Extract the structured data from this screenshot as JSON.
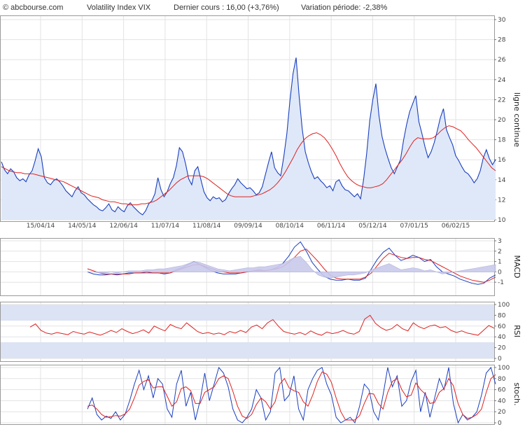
{
  "header": {
    "site": "© abcbourse.com",
    "instrument": "Volatility Index VIX",
    "last_price": "Dernier cours : 16,00 (+3,76%)",
    "period_change": "Variation période: -2,38%"
  },
  "colors": {
    "price_line": "#1a3fbf",
    "price_fill": "#dfe8f8",
    "moving_average": "#e02020",
    "histogram": "#c9c9ec",
    "rsi_band": "#dbe3f4",
    "grid": "#e3e3e3",
    "text": "#333333"
  },
  "chart_data": [
    {
      "type": "line",
      "panel": "price",
      "label": "ligne continue",
      "ylim": [
        10,
        30
      ],
      "yticks": [
        "10",
        "12",
        "14",
        "16",
        "18",
        "20",
        "22",
        "24",
        "26",
        "28",
        "30"
      ],
      "xticks": [
        "15/04/14",
        "14/05/14",
        "12/06/14",
        "11/07/14",
        "11/08/14",
        "09/09/14",
        "08/10/14",
        "06/11/14",
        "05/12/14",
        "07/01/15",
        "06/02/15"
      ],
      "grid": true,
      "fill_under": true,
      "series": [
        {
          "role": "price",
          "values": [
            15.8,
            15.0,
            14.6,
            15.1,
            14.8,
            14.2,
            13.9,
            14.1,
            13.8,
            14.5,
            14.9,
            15.9,
            17.1,
            16.3,
            14.2,
            13.7,
            13.5,
            13.9,
            14.1,
            13.8,
            13.4,
            12.9,
            12.6,
            12.3,
            12.9,
            13.3,
            12.7,
            12.5,
            12.1,
            11.8,
            11.5,
            11.3,
            11.0,
            10.9,
            11.2,
            11.6,
            11.0,
            10.8,
            11.3,
            11.0,
            10.8,
            11.4,
            11.7,
            11.3,
            11.0,
            10.7,
            10.5,
            10.9,
            11.6,
            11.9,
            12.6,
            14.2,
            13.0,
            12.3,
            12.8,
            13.6,
            14.2,
            15.4,
            17.2,
            16.8,
            15.6,
            14.1,
            13.5,
            14.9,
            15.3,
            14.0,
            12.8,
            12.2,
            11.9,
            12.3,
            12.1,
            12.2,
            11.8,
            12.0,
            12.6,
            13.1,
            13.5,
            14.1,
            13.7,
            13.4,
            13.1,
            13.2,
            12.9,
            12.5,
            12.7,
            13.3,
            14.5,
            15.7,
            16.8,
            15.2,
            14.7,
            14.4,
            16.3,
            18.6,
            21.9,
            24.6,
            26.2,
            22.3,
            19.1,
            16.8,
            15.7,
            14.8,
            14.1,
            14.3,
            13.9,
            13.6,
            13.2,
            13.4,
            12.9,
            13.8,
            14.0,
            13.4,
            13.0,
            12.9,
            12.6,
            12.3,
            12.6,
            12.1,
            14.0,
            16.6,
            19.9,
            22.0,
            23.6,
            20.4,
            18.3,
            17.1,
            16.1,
            15.2,
            14.6,
            15.3,
            16.0,
            17.9,
            19.5,
            20.8,
            21.6,
            22.4,
            19.8,
            18.6,
            17.3,
            16.2,
            16.8,
            17.7,
            18.9,
            20.2,
            21.1,
            19.0,
            18.2,
            17.5,
            16.4,
            15.9,
            15.3,
            14.8,
            14.6,
            14.2,
            13.7,
            14.1,
            14.9,
            16.2,
            17.0,
            16.1,
            15.5,
            16.0
          ]
        },
        {
          "role": "moving-average",
          "values": [
            15.3,
            15.1,
            14.9,
            14.8,
            14.7,
            14.7,
            14.6,
            14.6,
            14.6,
            14.5,
            14.4,
            14.3,
            14.2,
            14.1,
            14.0,
            13.9,
            13.8,
            13.6,
            13.4,
            13.2,
            13.0,
            12.8,
            12.6,
            12.4,
            12.3,
            12.2,
            12.0,
            11.9,
            11.8,
            11.8,
            11.7,
            11.6,
            11.6,
            11.5,
            11.5,
            11.5,
            11.6,
            11.6,
            11.7,
            11.8,
            12.0,
            12.3,
            12.6,
            12.9,
            13.3,
            13.7,
            14.0,
            14.2,
            14.4,
            14.4,
            14.4,
            14.4,
            14.3,
            14.1,
            13.8,
            13.5,
            13.2,
            12.9,
            12.6,
            12.4,
            12.3,
            12.3,
            12.3,
            12.3,
            12.3,
            12.4,
            12.5,
            12.6,
            12.8,
            13.0,
            13.3,
            13.7,
            14.2,
            14.8,
            15.5,
            16.2,
            17.0,
            17.6,
            18.1,
            18.4,
            18.6,
            18.7,
            18.5,
            18.2,
            17.7,
            17.1,
            16.4,
            15.6,
            14.9,
            14.3,
            13.9,
            13.6,
            13.4,
            13.3,
            13.2,
            13.2,
            13.3,
            13.4,
            13.6,
            14.0,
            14.5,
            15.0,
            15.5,
            16.0,
            16.6,
            17.3,
            17.9,
            18.2,
            18.1,
            18.1,
            18.1,
            18.2,
            18.5,
            18.9,
            19.2,
            19.4,
            19.3,
            19.1,
            18.9,
            18.5,
            18.0,
            17.6,
            17.2,
            16.7,
            16.2,
            15.7,
            15.2,
            14.9
          ]
        }
      ]
    },
    {
      "type": "line",
      "panel": "macd",
      "label": "MACD",
      "ylim": [
        -2,
        3
      ],
      "yticks": [
        "-1",
        "0",
        "1",
        "2",
        "3"
      ],
      "grid": true,
      "series": [
        {
          "role": "macd",
          "values": [
            0.0,
            -0.2,
            -0.3,
            -0.3,
            -0.2,
            -0.3,
            -0.2,
            -0.1,
            -0.1,
            -0.1,
            0.0,
            -0.1,
            -0.1,
            -0.2,
            -0.1,
            0.2,
            0.4,
            0.7,
            1.0,
            0.7,
            0.4,
            0.1,
            -0.1,
            -0.2,
            -0.2,
            -0.2,
            -0.1,
            0.0,
            0.1,
            0.2,
            0.1,
            0.2,
            0.4,
            0.8,
            1.5,
            2.4,
            2.9,
            2.0,
            0.9,
            0.2,
            -0.4,
            -0.7,
            -0.8,
            -0.8,
            -0.7,
            -0.8,
            -0.8,
            -0.6,
            0.3,
            1.2,
            1.9,
            2.3,
            1.6,
            1.1,
            1.3,
            1.6,
            1.4,
            1.0,
            1.2,
            0.5,
            0.0,
            -0.2,
            -0.4,
            -0.7,
            -0.9,
            -1.1,
            -1.2,
            -1.1,
            -0.6,
            -0.3
          ]
        },
        {
          "role": "signal",
          "values": [
            0.3,
            0.1,
            -0.1,
            -0.2,
            -0.2,
            -0.2,
            -0.2,
            -0.2,
            -0.1,
            -0.1,
            -0.1,
            -0.1,
            -0.1,
            -0.1,
            -0.1,
            0.1,
            0.3,
            0.5,
            0.7,
            0.7,
            0.5,
            0.3,
            0.1,
            0.0,
            -0.1,
            -0.1,
            -0.1,
            0.0,
            0.1,
            0.1,
            0.1,
            0.2,
            0.3,
            0.5,
            0.9,
            1.4,
            2.0,
            2.2,
            1.6,
            1.0,
            0.3,
            -0.3,
            -0.6,
            -0.7,
            -0.7,
            -0.7,
            -0.7,
            -0.5,
            -0.1,
            0.6,
            1.3,
            1.8,
            1.6,
            1.4,
            1.3,
            1.4,
            1.4,
            1.2,
            1.1,
            0.8,
            0.5,
            0.2,
            -0.1,
            -0.4,
            -0.6,
            -0.8,
            -0.9,
            -1.0,
            -0.8,
            -0.5
          ]
        },
        {
          "role": "histogram",
          "values": [
            0.0,
            0.0,
            -0.1,
            -0.1,
            0.0,
            -0.1,
            0.0,
            0.1,
            0.1,
            0.1,
            0.2,
            0.2,
            0.3,
            0.3,
            0.4,
            0.5,
            0.6,
            0.8,
            1.0,
            0.9,
            0.7,
            0.5,
            0.3,
            0.2,
            0.1,
            0.2,
            0.3,
            0.4,
            0.4,
            0.5,
            0.5,
            0.6,
            0.7,
            0.8,
            1.1,
            1.4,
            1.5,
            0.9,
            0.2,
            -0.3,
            -0.5,
            -0.6,
            -0.5,
            -0.4,
            -0.3,
            -0.3,
            -0.2,
            -0.1,
            0.2,
            0.4,
            0.6,
            0.8,
            0.5,
            0.2,
            0.3,
            0.4,
            0.3,
            0.1,
            0.2,
            0.0,
            -0.2,
            -0.1,
            0.0,
            0.1,
            0.2,
            0.3,
            0.4,
            0.5,
            0.6,
            0.7
          ]
        }
      ]
    },
    {
      "type": "line",
      "panel": "rsi",
      "label": "RSI",
      "ylim": [
        0,
        100
      ],
      "yticks": [
        "0",
        "20",
        "40",
        "60",
        "80",
        "100"
      ],
      "bands": [
        [
          0,
          30
        ],
        [
          70,
          100
        ]
      ],
      "grid": true,
      "series": [
        {
          "role": "rsi",
          "values": [
            58,
            64,
            52,
            47,
            45,
            48,
            46,
            44,
            50,
            47,
            45,
            49,
            46,
            43,
            47,
            52,
            48,
            55,
            50,
            46,
            49,
            53,
            47,
            60,
            55,
            51,
            63,
            58,
            55,
            66,
            58,
            50,
            46,
            48,
            45,
            47,
            44,
            50,
            47,
            52,
            48,
            58,
            62,
            55,
            66,
            72,
            60,
            50,
            47,
            45,
            48,
            44,
            51,
            46,
            43,
            49,
            46,
            48,
            52,
            47,
            45,
            50,
            73,
            80,
            65,
            57,
            52,
            55,
            63,
            55,
            51,
            66,
            59,
            55,
            60,
            62,
            57,
            59,
            52,
            48,
            51,
            47,
            45,
            43,
            52,
            61,
            56
          ]
        }
      ]
    },
    {
      "type": "line",
      "panel": "stochastic",
      "label": "stoch.",
      "ylim": [
        0,
        100
      ],
      "yticks": [
        "0",
        "20",
        "40",
        "60",
        "80",
        "100"
      ],
      "grid": true,
      "series": [
        {
          "role": "stoch-k",
          "values": [
            25,
            45,
            15,
            5,
            12,
            8,
            20,
            5,
            15,
            40,
            70,
            95,
            60,
            85,
            45,
            80,
            70,
            25,
            10,
            70,
            95,
            30,
            55,
            5,
            40,
            90,
            40,
            70,
            100,
            90,
            65,
            25,
            5,
            0,
            10,
            25,
            60,
            45,
            5,
            20,
            90,
            100,
            40,
            50,
            85,
            25,
            5,
            60,
            80,
            95,
            100,
            70,
            50,
            10,
            0,
            5,
            10,
            0,
            30,
            70,
            60,
            20,
            5,
            50,
            100,
            65,
            85,
            30,
            40,
            75,
            95,
            20,
            55,
            10,
            45,
            80,
            60,
            100,
            35,
            0,
            15,
            5,
            10,
            20,
            50,
            90,
            100,
            70
          ]
        },
        {
          "role": "stoch-d",
          "values": [
            30,
            32,
            25,
            15,
            10,
            11,
            13,
            12,
            16,
            25,
            45,
            68,
            75,
            78,
            63,
            65,
            65,
            48,
            30,
            38,
            62,
            65,
            58,
            35,
            35,
            55,
            60,
            65,
            80,
            85,
            80,
            57,
            30,
            12,
            8,
            15,
            33,
            45,
            38,
            25,
            38,
            70,
            80,
            63,
            58,
            55,
            38,
            30,
            50,
            75,
            92,
            88,
            73,
            45,
            20,
            5,
            5,
            5,
            13,
            35,
            53,
            52,
            35,
            25,
            55,
            75,
            80,
            60,
            47,
            50,
            72,
            60,
            52,
            35,
            37,
            55,
            62,
            80,
            67,
            35,
            15,
            8,
            10,
            15,
            25,
            55,
            80,
            87
          ]
        }
      ]
    }
  ]
}
